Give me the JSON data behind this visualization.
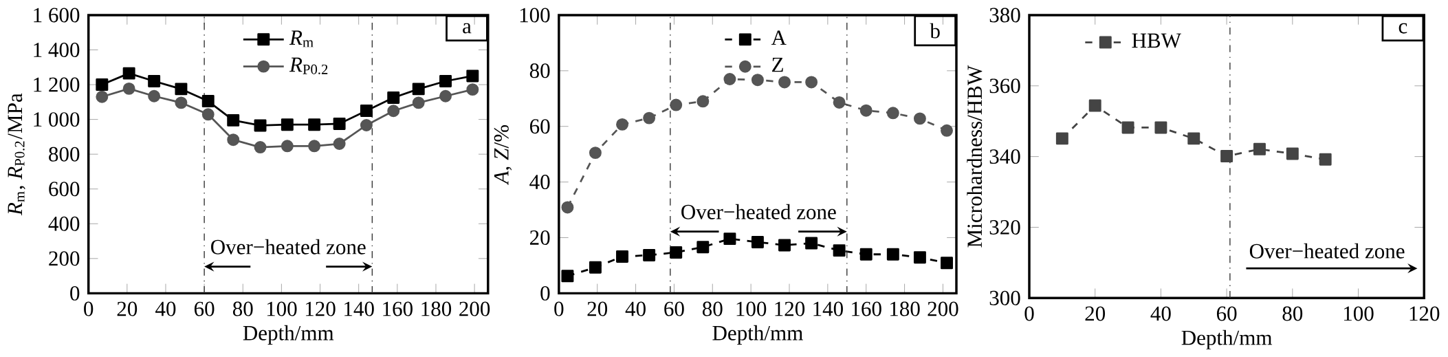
{
  "chart_data": [
    {
      "type": "line",
      "xlabel": "Depth/mm",
      "ylabel": "*R*$_{m}$, *R*$_{P0.2}$/MPa",
      "xlim": [
        0,
        207
      ],
      "ylim": [
        0,
        1600
      ],
      "xticks": [
        0,
        20,
        40,
        60,
        80,
        100,
        120,
        140,
        160,
        180,
        200
      ],
      "yticks": [
        0,
        200,
        400,
        600,
        800,
        {
          "value": 1000,
          "label": "1 000"
        },
        {
          "value": 1200,
          "label": "1 200"
        },
        {
          "value": 1400,
          "label": "1 400"
        },
        {
          "value": 1600,
          "label": "1 600"
        }
      ],
      "x": [
        7,
        21,
        34,
        48,
        62,
        75,
        89,
        103,
        117,
        130,
        144,
        158,
        171,
        185,
        199
      ],
      "series": [
        {
          "name": "*R*$_{m}$",
          "color": "#000000",
          "marker": "square",
          "line_style": "solid",
          "values": [
            1200,
            1265,
            1220,
            1175,
            1105,
            995,
            965,
            970,
            970,
            975,
            1050,
            1125,
            1175,
            1220,
            1250
          ]
        },
        {
          "name": "*R*$_{P0.2}$",
          "color": "#555555",
          "marker": "circle",
          "line_style": "solid",
          "values": [
            1130,
            1177,
            1134,
            1096,
            1029,
            883,
            840,
            847,
            847,
            860,
            967,
            1049,
            1096,
            1134,
            1172
          ]
        }
      ],
      "ref_lines": [
        {
          "axis": "x",
          "value": 60,
          "line_style": "dashdot"
        },
        {
          "axis": "x",
          "value": 147,
          "line_style": "dashdot"
        }
      ],
      "annotations": [
        "a",
        "Over−heated zone"
      ],
      "legend": "top"
    },
    {
      "type": "line",
      "xlabel": "Depth/mm",
      "ylabel": "*A*, *Z*/%",
      "xlim": [
        0,
        207
      ],
      "ylim": [
        0,
        100
      ],
      "xticks": [
        0,
        20,
        40,
        60,
        80,
        100,
        120,
        140,
        160,
        180,
        200
      ],
      "yticks": [
        0,
        20,
        40,
        60,
        80,
        100
      ],
      "x": [
        4.5,
        19,
        33,
        47,
        61,
        75,
        89,
        103.5,
        117.5,
        131.5,
        146,
        160,
        174,
        188,
        202
      ],
      "series": [
        {
          "name": "A",
          "color": "#000000",
          "marker": "square",
          "line_style": "dashed",
          "values": [
            6.2,
            9.3,
            13.2,
            13.7,
            14.7,
            16.6,
            19.6,
            18.4,
            17.3,
            18.0,
            15.4,
            14.0,
            14.0,
            12.9,
            10.9
          ]
        },
        {
          "name": "Z",
          "color": "#555555",
          "marker": "circle",
          "line_style": "dashed",
          "values": [
            30.9,
            50.5,
            60.7,
            63.0,
            67.7,
            69.0,
            77.0,
            76.7,
            75.9,
            75.9,
            68.6,
            65.7,
            64.8,
            62.8,
            58.5
          ]
        }
      ],
      "ref_lines": [
        {
          "axis": "x",
          "value": 58,
          "line_style": "dashdot"
        },
        {
          "axis": "x",
          "value": 150,
          "line_style": "dashdot"
        }
      ],
      "annotations": [
        "b",
        "Over−heated zone"
      ],
      "legend": "top"
    },
    {
      "type": "line",
      "xlabel": "Depth/mm",
      "ylabel": "Microhardness/HBW",
      "xlim": [
        0,
        120
      ],
      "ylim": [
        300,
        380
      ],
      "xticks": [
        0,
        20,
        40,
        60,
        80,
        100,
        120
      ],
      "yticks": [
        300,
        320,
        340,
        360,
        380
      ],
      "x": [
        10,
        20,
        30,
        40,
        50,
        60,
        70,
        80,
        90
      ],
      "series": [
        {
          "name": "HBW",
          "color": "#444444",
          "marker": "square",
          "line_style": "dashed",
          "values": [
            345.1,
            354.4,
            348.2,
            348.2,
            345.1,
            340.1,
            342.1,
            340.8,
            339.2
          ]
        }
      ],
      "ref_lines": [
        {
          "axis": "x",
          "value": 61,
          "line_style": "dashdot"
        }
      ],
      "annotations": [
        "c",
        "Over−heated zone"
      ],
      "legend": "top left"
    }
  ]
}
